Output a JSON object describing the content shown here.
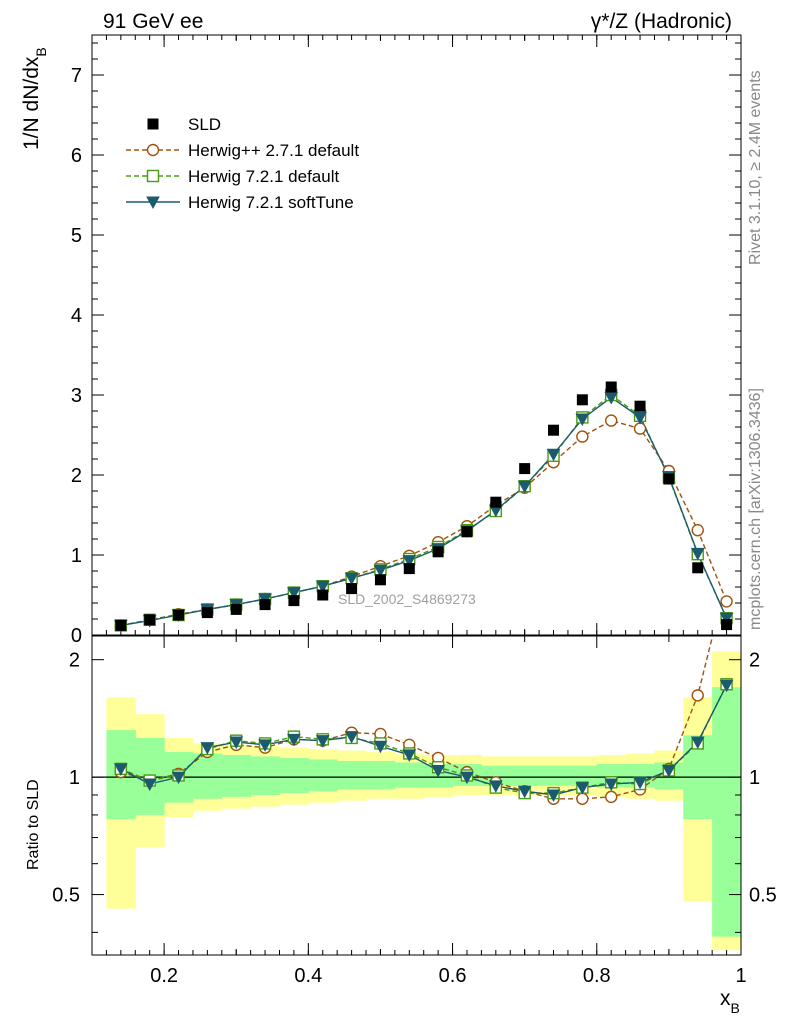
{
  "header": {
    "left_title": "91 GeV ee",
    "right_title_main": "γ*/Z (Hadronic)"
  },
  "side_text": {
    "rivet": "Rivet 3.1.10, ≥ 2.4M events",
    "mcplots": "mcplots.cern.ch [arXiv:1306.3436]"
  },
  "analysis_label": "SLD_2002_S4869273",
  "colors": {
    "data": "#000000",
    "herwigpp": "#a0520d",
    "herwig721": "#4a9a12",
    "softtune": "#1c5a6e",
    "band_inner": "#99ff99",
    "band_outer": "#ffff99"
  },
  "chart_data": [
    {
      "type": "scatter",
      "panel": "main",
      "ylabel": "1/N dN/dx_B",
      "ylim": [
        0,
        7.5
      ],
      "xlim": [
        0.1,
        1.0
      ],
      "yticks": [
        0,
        1,
        2,
        3,
        4,
        5,
        6,
        7
      ],
      "legend_position": "top-left",
      "x": [
        0.14,
        0.18,
        0.22,
        0.26,
        0.3,
        0.34,
        0.38,
        0.42,
        0.46,
        0.5,
        0.54,
        0.58,
        0.62,
        0.66,
        0.7,
        0.74,
        0.78,
        0.82,
        0.86,
        0.9,
        0.94,
        0.98
      ],
      "series": [
        {
          "name": "SLD",
          "style": "markers-square-filled",
          "values": [
            0.12,
            0.19,
            0.25,
            0.28,
            0.32,
            0.38,
            0.43,
            0.5,
            0.58,
            0.69,
            0.83,
            1.04,
            1.29,
            1.66,
            2.08,
            2.56,
            2.94,
            3.1,
            2.86,
            1.95,
            0.84,
            0.13
          ]
        },
        {
          "name": "Herwig++ 2.7.1 default",
          "style": "dashed-circle-open",
          "values": [
            0.12,
            0.19,
            0.26,
            0.32,
            0.38,
            0.45,
            0.53,
            0.61,
            0.73,
            0.86,
            0.99,
            1.16,
            1.36,
            1.62,
            1.84,
            2.16,
            2.48,
            2.68,
            2.58,
            2.05,
            1.31,
            0.42
          ]
        },
        {
          "name": "Herwig 7.2.1 default",
          "style": "dashed-square-open",
          "values": [
            0.12,
            0.19,
            0.25,
            0.32,
            0.38,
            0.45,
            0.53,
            0.61,
            0.71,
            0.82,
            0.95,
            1.1,
            1.31,
            1.55,
            1.86,
            2.24,
            2.72,
            3.0,
            2.74,
            1.97,
            1.01,
            0.21
          ]
        },
        {
          "name": "Herwig 7.2.1 softTune",
          "style": "solid-triangle-down-filled",
          "values": [
            0.12,
            0.18,
            0.25,
            0.32,
            0.38,
            0.45,
            0.53,
            0.61,
            0.71,
            0.81,
            0.93,
            1.08,
            1.3,
            1.56,
            1.86,
            2.26,
            2.7,
            2.97,
            2.72,
            1.98,
            1.02,
            0.21
          ]
        }
      ]
    },
    {
      "type": "line",
      "panel": "ratio",
      "ylabel": "Ratio to SLD",
      "xlabel": "x_B",
      "ylim": [
        0.35,
        2.3
      ],
      "log_y": true,
      "xlim": [
        0.1,
        1.0
      ],
      "xticks": [
        0.2,
        0.4,
        0.6,
        0.8,
        1
      ],
      "yticks": [
        0.5,
        1,
        2
      ],
      "reference_line": 1,
      "x": [
        0.14,
        0.18,
        0.22,
        0.26,
        0.3,
        0.34,
        0.38,
        0.42,
        0.46,
        0.5,
        0.54,
        0.58,
        0.62,
        0.66,
        0.7,
        0.74,
        0.78,
        0.82,
        0.86,
        0.9,
        0.94,
        0.98
      ],
      "bands": {
        "bin_edges": [
          0.12,
          0.16,
          0.2,
          0.24,
          0.28,
          0.32,
          0.36,
          0.4,
          0.44,
          0.48,
          0.52,
          0.56,
          0.6,
          0.64,
          0.68,
          0.72,
          0.76,
          0.8,
          0.84,
          0.88,
          0.92,
          0.96,
          1.0
        ],
        "inner": [
          [
            0.78,
            1.32
          ],
          [
            0.8,
            1.26
          ],
          [
            0.86,
            1.16
          ],
          [
            0.88,
            1.15
          ],
          [
            0.89,
            1.14
          ],
          [
            0.9,
            1.13
          ],
          [
            0.91,
            1.12
          ],
          [
            0.92,
            1.11
          ],
          [
            0.93,
            1.1
          ],
          [
            0.93,
            1.1
          ],
          [
            0.94,
            1.09
          ],
          [
            0.94,
            1.08
          ],
          [
            0.95,
            1.08
          ],
          [
            0.95,
            1.07
          ],
          [
            0.95,
            1.07
          ],
          [
            0.95,
            1.07
          ],
          [
            0.95,
            1.07
          ],
          [
            0.94,
            1.08
          ],
          [
            0.94,
            1.08
          ],
          [
            0.93,
            1.09
          ],
          [
            0.78,
            1.28
          ],
          [
            0.39,
            1.7
          ]
        ],
        "outer": [
          [
            0.46,
            1.6
          ],
          [
            0.66,
            1.45
          ],
          [
            0.79,
            1.26
          ],
          [
            0.82,
            1.22
          ],
          [
            0.83,
            1.21
          ],
          [
            0.84,
            1.2
          ],
          [
            0.85,
            1.19
          ],
          [
            0.86,
            1.18
          ],
          [
            0.87,
            1.17
          ],
          [
            0.88,
            1.16
          ],
          [
            0.88,
            1.15
          ],
          [
            0.89,
            1.14
          ],
          [
            0.9,
            1.14
          ],
          [
            0.9,
            1.13
          ],
          [
            0.9,
            1.13
          ],
          [
            0.9,
            1.13
          ],
          [
            0.9,
            1.13
          ],
          [
            0.89,
            1.14
          ],
          [
            0.88,
            1.15
          ],
          [
            0.87,
            1.17
          ],
          [
            0.48,
            1.6
          ],
          [
            0.36,
            2.1
          ]
        ]
      },
      "series": [
        {
          "name": "Herwig++ 2.7.1 default",
          "values": [
            1.03,
            0.98,
            1.02,
            1.16,
            1.21,
            1.19,
            1.25,
            1.24,
            1.3,
            1.29,
            1.21,
            1.12,
            1.03,
            0.97,
            0.92,
            0.88,
            0.88,
            0.89,
            0.93,
            1.05,
            1.62,
            3.2
          ]
        },
        {
          "name": "Herwig 7.2.1 default",
          "values": [
            1.05,
            0.98,
            1.01,
            1.18,
            1.24,
            1.22,
            1.27,
            1.25,
            1.26,
            1.22,
            1.15,
            1.06,
            1.01,
            0.94,
            0.91,
            0.91,
            0.94,
            0.97,
            0.96,
            1.04,
            1.22,
            1.73
          ]
        },
        {
          "name": "Herwig 7.2.1 softTune",
          "values": [
            1.05,
            0.96,
            1.0,
            1.19,
            1.23,
            1.21,
            1.25,
            1.24,
            1.27,
            1.2,
            1.14,
            1.04,
            1.0,
            0.95,
            0.92,
            0.9,
            0.94,
            0.96,
            0.97,
            1.04,
            1.23,
            1.72
          ]
        }
      ]
    }
  ]
}
